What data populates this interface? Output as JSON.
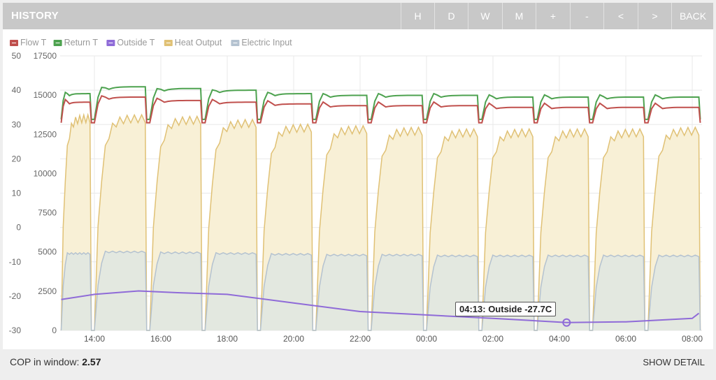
{
  "header": {
    "title": "HISTORY",
    "buttons": [
      "H",
      "D",
      "W",
      "M",
      "+",
      "-",
      "<",
      ">",
      "BACK"
    ]
  },
  "colors": {
    "flow": "#c0504d",
    "return": "#4da24f",
    "outside": "#8f6bd8",
    "heat": "#e0c175",
    "heat_fill": "#f8f0d6",
    "electric": "#b4c2d0",
    "electric_fill": "#e3e8e0",
    "grid": "#e8e8e8"
  },
  "chart_data": {
    "type": "line",
    "legend": [
      "Flow T",
      "Return T",
      "Outside T",
      "Heat Output",
      "Electric Input"
    ],
    "legend_position": "top-left",
    "left_axis": {
      "ticks": [
        "50",
        "40",
        "30",
        "20",
        "10",
        "0",
        "-10",
        "-20",
        "-30"
      ],
      "range": [
        -30,
        50
      ]
    },
    "right_axis": {
      "ticks": [
        "17500",
        "15000",
        "12500",
        "10000",
        "7500",
        "5000",
        "2500",
        "0"
      ],
      "range": [
        0,
        17500
      ]
    },
    "x_ticks": [
      "14:00",
      "16:00",
      "18:00",
      "20:00",
      "22:00",
      "00:00",
      "02:00",
      "04:00",
      "06:00",
      "08:00"
    ],
    "cycles": [
      {
        "start": "13:00",
        "end": "13:52",
        "flow": 36.5,
        "return": 39,
        "heat": 13500,
        "elec": 4900
      },
      {
        "start": "14:00",
        "end": "15:32",
        "flow": 38,
        "return": 41,
        "heat": 13500,
        "elec": 5000
      },
      {
        "start": "15:40",
        "end": "17:12",
        "flow": 37,
        "return": 40.5,
        "heat": 13400,
        "elec": 4950
      },
      {
        "start": "17:20",
        "end": "18:52",
        "flow": 36.5,
        "return": 40,
        "heat": 13200,
        "elec": 4900
      },
      {
        "start": "19:00",
        "end": "20:32",
        "flow": 36,
        "return": 39,
        "heat": 12900,
        "elec": 4850
      },
      {
        "start": "20:40",
        "end": "22:12",
        "flow": 35.5,
        "return": 38.5,
        "heat": 12800,
        "elec": 4800
      },
      {
        "start": "22:20",
        "end": "23:52",
        "flow": 35.5,
        "return": 38.5,
        "heat": 12700,
        "elec": 4800
      },
      {
        "start": "00:00",
        "end": "01:32",
        "flow": 35.5,
        "return": 38.5,
        "heat": 12600,
        "elec": 4750
      },
      {
        "start": "01:40",
        "end": "03:12",
        "flow": 35,
        "return": 38,
        "heat": 12600,
        "elec": 4750
      },
      {
        "start": "03:20",
        "end": "04:52",
        "flow": 35,
        "return": 38,
        "heat": 12600,
        "elec": 4750
      },
      {
        "start": "05:00",
        "end": "06:32",
        "flow": 35,
        "return": 38,
        "heat": 12600,
        "elec": 4750
      },
      {
        "start": "06:40",
        "end": "08:12",
        "flow": 35,
        "return": 38,
        "heat": 12700,
        "elec": 4750
      }
    ],
    "outside": [
      {
        "t": "13:00",
        "v": -21
      },
      {
        "t": "14:00",
        "v": -19.5
      },
      {
        "t": "15:20",
        "v": -18.5
      },
      {
        "t": "16:30",
        "v": -19
      },
      {
        "t": "18:00",
        "v": -19.5
      },
      {
        "t": "20:00",
        "v": -22
      },
      {
        "t": "22:00",
        "v": -24.5
      },
      {
        "t": "00:00",
        "v": -25.5
      },
      {
        "t": "02:00",
        "v": -26.5
      },
      {
        "t": "04:13",
        "v": -27.7
      },
      {
        "t": "06:00",
        "v": -27.5
      },
      {
        "t": "08:00",
        "v": -26.5
      },
      {
        "t": "08:12",
        "v": -25
      }
    ],
    "tooltip": "04:13: Outside -27.7C"
  },
  "footer": {
    "cop_label": "COP in window:",
    "cop_value": "2.57",
    "detail_label": "SHOW DETAIL"
  }
}
